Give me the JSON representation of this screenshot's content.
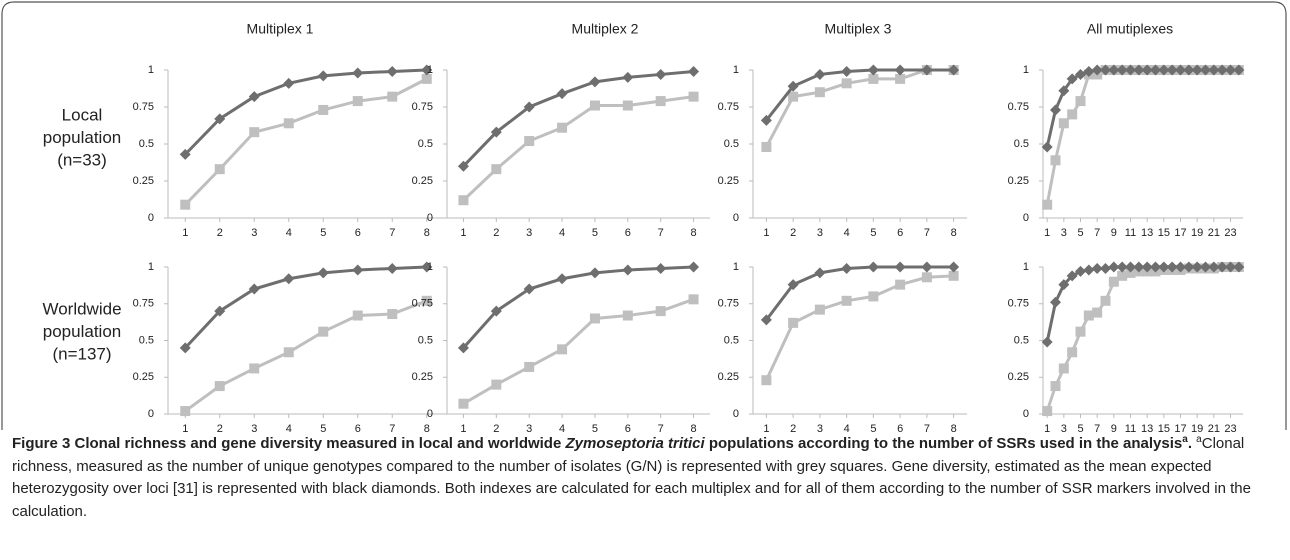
{
  "column_titles": [
    "Multiplex 1",
    "Multiplex  2",
    "Multiplex  3",
    "All mutiplexes"
  ],
  "row_labels": [
    [
      "Local",
      "population",
      "(n=33)"
    ],
    [
      "Worldwide",
      "population",
      "(n=137)"
    ]
  ],
  "chart_data": [
    {
      "type": "line",
      "x": [
        1,
        2,
        3,
        4,
        5,
        6,
        7,
        8
      ],
      "xlim": [
        0.5,
        8.5
      ],
      "xticks": [
        1,
        2,
        3,
        4,
        5,
        6,
        7,
        8
      ],
      "ylim": [
        0,
        1
      ],
      "yticks": [
        0,
        0.25,
        0.5,
        0.75,
        1
      ],
      "series": [
        {
          "color": "#6e6e6e",
          "marker": "diamond",
          "values": [
            0.43,
            0.67,
            0.82,
            0.91,
            0.96,
            0.98,
            0.99,
            1.0
          ]
        },
        {
          "color": "#bfbfbf",
          "marker": "square",
          "values": [
            0.09,
            0.33,
            0.58,
            0.64,
            0.73,
            0.79,
            0.82,
            0.94
          ]
        }
      ]
    },
    {
      "type": "line",
      "x": [
        1,
        2,
        3,
        4,
        5,
        6,
        7,
        8
      ],
      "xlim": [
        0.5,
        8.5
      ],
      "xticks": [
        1,
        2,
        3,
        4,
        5,
        6,
        7,
        8
      ],
      "ylim": [
        0,
        1
      ],
      "yticks": [
        0,
        0.25,
        0.5,
        0.75,
        1
      ],
      "series": [
        {
          "color": "#6e6e6e",
          "marker": "diamond",
          "values": [
            0.35,
            0.58,
            0.75,
            0.84,
            0.92,
            0.95,
            0.97,
            0.99
          ]
        },
        {
          "color": "#bfbfbf",
          "marker": "square",
          "values": [
            0.12,
            0.33,
            0.52,
            0.61,
            0.76,
            0.76,
            0.79,
            0.82
          ]
        }
      ]
    },
    {
      "type": "line",
      "x": [
        1,
        2,
        3,
        4,
        5,
        6,
        7,
        8
      ],
      "xlim": [
        0.5,
        8.5
      ],
      "xticks": [
        1,
        2,
        3,
        4,
        5,
        6,
        7,
        8
      ],
      "ylim": [
        0,
        1
      ],
      "yticks": [
        0,
        0.25,
        0.5,
        0.75,
        1
      ],
      "series": [
        {
          "color": "#6e6e6e",
          "marker": "diamond",
          "values": [
            0.66,
            0.89,
            0.97,
            0.99,
            1.0,
            1.0,
            1.0,
            1.0
          ]
        },
        {
          "color": "#bfbfbf",
          "marker": "square",
          "values": [
            0.48,
            0.82,
            0.85,
            0.91,
            0.94,
            0.94,
            1.0,
            1.0
          ]
        }
      ]
    },
    {
      "type": "line",
      "x": [
        1,
        2,
        3,
        4,
        5,
        6,
        7,
        8,
        9,
        10,
        11,
        12,
        13,
        14,
        15,
        16,
        17,
        18,
        19,
        20,
        21,
        22,
        23,
        24
      ],
      "xlim": [
        0.5,
        24.5
      ],
      "xticks": [
        1,
        3,
        5,
        7,
        9,
        11,
        13,
        15,
        17,
        19,
        21,
        23
      ],
      "ylim": [
        0,
        1
      ],
      "yticks": [
        0,
        0.25,
        0.5,
        0.75,
        1
      ],
      "series": [
        {
          "color": "#6e6e6e",
          "marker": "diamond",
          "values": [
            0.48,
            0.73,
            0.86,
            0.94,
            0.97,
            0.99,
            1.0,
            1.0,
            1.0,
            1.0,
            1.0,
            1.0,
            1.0,
            1.0,
            1.0,
            1.0,
            1.0,
            1.0,
            1.0,
            1.0,
            1.0,
            1.0,
            1.0,
            1.0
          ]
        },
        {
          "color": "#bfbfbf",
          "marker": "square",
          "values": [
            0.09,
            0.39,
            0.64,
            0.7,
            0.79,
            0.97,
            0.97,
            1.0,
            1.0,
            1.0,
            1.0,
            1.0,
            1.0,
            1.0,
            1.0,
            1.0,
            1.0,
            1.0,
            1.0,
            1.0,
            1.0,
            1.0,
            1.0,
            1.0
          ]
        }
      ]
    },
    {
      "type": "line",
      "x": [
        1,
        2,
        3,
        4,
        5,
        6,
        7,
        8
      ],
      "xlim": [
        0.5,
        8.5
      ],
      "xticks": [
        1,
        2,
        3,
        4,
        5,
        6,
        7,
        8
      ],
      "ylim": [
        0,
        1
      ],
      "yticks": [
        0,
        0.25,
        0.5,
        0.75,
        1
      ],
      "series": [
        {
          "color": "#6e6e6e",
          "marker": "diamond",
          "values": [
            0.45,
            0.7,
            0.85,
            0.92,
            0.96,
            0.98,
            0.99,
            1.0
          ]
        },
        {
          "color": "#bfbfbf",
          "marker": "square",
          "values": [
            0.02,
            0.19,
            0.31,
            0.42,
            0.56,
            0.67,
            0.68,
            0.77
          ]
        }
      ]
    },
    {
      "type": "line",
      "x": [
        1,
        2,
        3,
        4,
        5,
        6,
        7,
        8
      ],
      "xlim": [
        0.5,
        8.5
      ],
      "xticks": [
        1,
        2,
        3,
        4,
        5,
        6,
        7,
        8
      ],
      "ylim": [
        0,
        1
      ],
      "yticks": [
        0,
        0.25,
        0.5,
        0.75,
        1
      ],
      "series": [
        {
          "color": "#6e6e6e",
          "marker": "diamond",
          "values": [
            0.45,
            0.7,
            0.85,
            0.92,
            0.96,
            0.98,
            0.99,
            1.0
          ]
        },
        {
          "color": "#bfbfbf",
          "marker": "square",
          "values": [
            0.07,
            0.2,
            0.32,
            0.44,
            0.65,
            0.67,
            0.7,
            0.78
          ]
        }
      ]
    },
    {
      "type": "line",
      "x": [
        1,
        2,
        3,
        4,
        5,
        6,
        7,
        8
      ],
      "xlim": [
        0.5,
        8.5
      ],
      "xticks": [
        1,
        2,
        3,
        4,
        5,
        6,
        7,
        8
      ],
      "ylim": [
        0,
        1
      ],
      "yticks": [
        0,
        0.25,
        0.5,
        0.75,
        1
      ],
      "series": [
        {
          "color": "#6e6e6e",
          "marker": "diamond",
          "values": [
            0.64,
            0.88,
            0.96,
            0.99,
            1.0,
            1.0,
            1.0,
            1.0
          ]
        },
        {
          "color": "#bfbfbf",
          "marker": "square",
          "values": [
            0.23,
            0.62,
            0.71,
            0.77,
            0.8,
            0.88,
            0.93,
            0.94
          ]
        }
      ]
    },
    {
      "type": "line",
      "x": [
        1,
        2,
        3,
        4,
        5,
        6,
        7,
        8,
        9,
        10,
        11,
        12,
        13,
        14,
        15,
        16,
        17,
        18,
        19,
        20,
        21,
        22,
        23,
        24
      ],
      "xlim": [
        0.5,
        24.5
      ],
      "xticks": [
        1,
        3,
        5,
        7,
        9,
        11,
        13,
        15,
        17,
        19,
        21,
        23
      ],
      "ylim": [
        0,
        1
      ],
      "yticks": [
        0,
        0.25,
        0.5,
        0.75,
        1
      ],
      "series": [
        {
          "color": "#6e6e6e",
          "marker": "diamond",
          "values": [
            0.49,
            0.76,
            0.88,
            0.94,
            0.97,
            0.98,
            0.99,
            0.99,
            1.0,
            1.0,
            1.0,
            1.0,
            1.0,
            1.0,
            1.0,
            1.0,
            1.0,
            1.0,
            1.0,
            1.0,
            1.0,
            1.0,
            1.0,
            1.0
          ]
        },
        {
          "color": "#bfbfbf",
          "marker": "square",
          "values": [
            0.02,
            0.19,
            0.31,
            0.42,
            0.56,
            0.67,
            0.69,
            0.77,
            0.9,
            0.94,
            0.96,
            0.97,
            0.97,
            0.97,
            0.98,
            0.98,
            0.98,
            0.99,
            0.99,
            0.99,
            0.99,
            1.0,
            1.0,
            1.0
          ]
        }
      ]
    }
  ],
  "caption": {
    "title_start": "Figure 3 Clonal richness and gene diversity measured in local and worldwide ",
    "title_italic": "Zymoseptoria tritici",
    "title_end": " populations according to the number of SSRs used in the analysis",
    "title_sup": "a",
    "title_period": ".",
    "body_sup": "a",
    "body": "Clonal richness, measured as the number of unique genotypes compared to the number of isolates (G/N) is represented with grey squares. Gene diversity, estimated as the mean expected heterozygosity over loci [31] is represented with black diamonds. Both indexes are calculated for each multiplex and for all of them according to the number of SSR markers involved in the calculation."
  }
}
